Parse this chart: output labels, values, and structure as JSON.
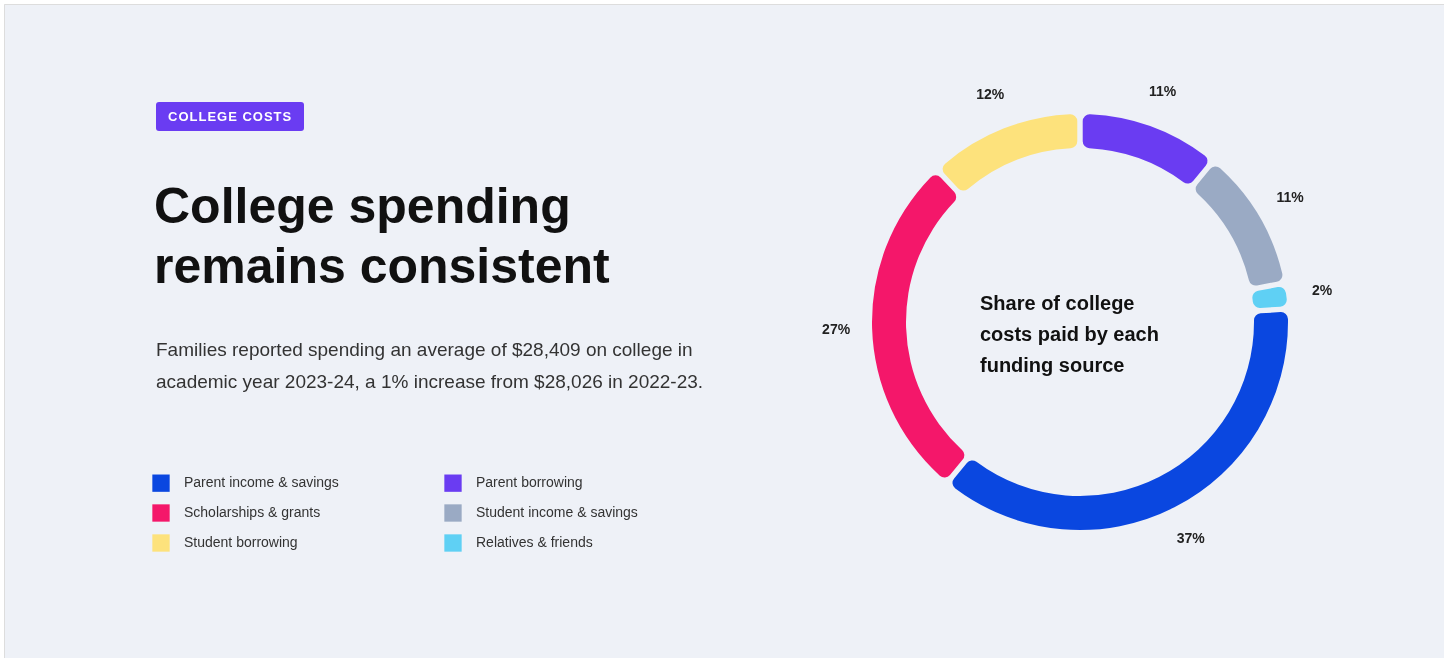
{
  "chart_data": {
    "type": "donut",
    "title": "College spending remains consistent",
    "subtitle": "Families reported spending an average of $28,409 on college in academic year 2023-24, a 1% increase from $28,026 in 2022-23.",
    "annotations": [
      "COLLEGE COSTS",
      "Share of college costs paid by each funding source"
    ],
    "categories": [
      "Parent income & savings",
      "Scholarships & grants",
      "Student borrowing",
      "Parent borrowing",
      "Student income & savings",
      "Relatives & friends"
    ],
    "values": [
      37,
      27,
      12,
      11,
      11,
      2
    ],
    "value_labels": [
      "37%",
      "27%",
      "12%",
      "11%",
      "11%",
      "2%"
    ],
    "colors": [
      "#0a47e0",
      "#f4176a",
      "#fde27c",
      "#6a3cf2",
      "#9aaac4",
      "#5fd0f4"
    ],
    "legend": "left"
  }
}
